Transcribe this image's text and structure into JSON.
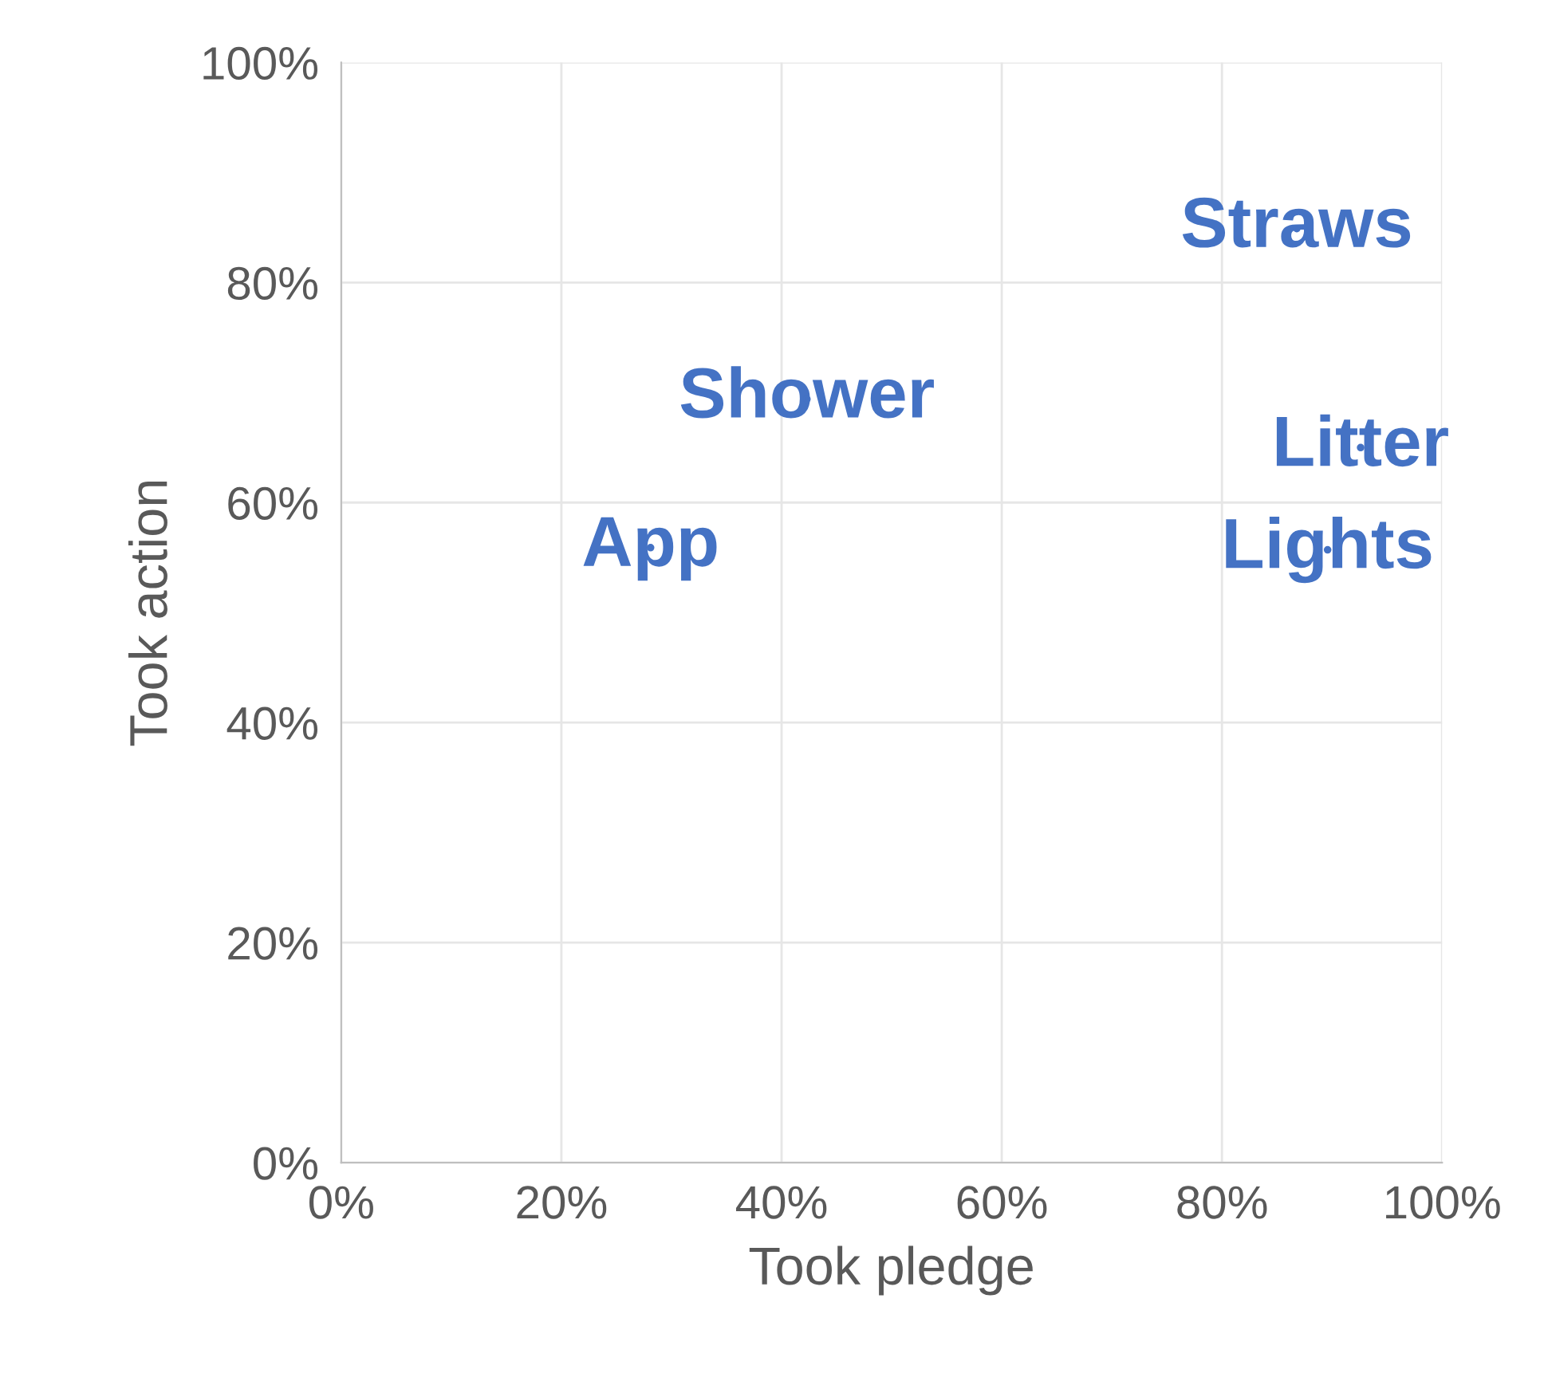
{
  "chart_data": {
    "type": "scatter",
    "xlabel": "Took pledge",
    "ylabel": "Took action",
    "x": [
      86.8,
      42.3,
      28.1,
      92.6,
      89.6
    ],
    "values": [
      84.9,
      69.4,
      55.9,
      65.0,
      55.7
    ],
    "value_labels": [
      "Straws",
      "Shower",
      "App",
      "Litter",
      "Lights"
    ],
    "color": "#4472c4",
    "marker": "none",
    "grid": true,
    "xlim": [
      0,
      100
    ],
    "ylim": [
      0,
      100
    ],
    "xticks": [
      {
        "value": 0,
        "label": "0%"
      },
      {
        "value": 20,
        "label": "20%"
      },
      {
        "value": 40,
        "label": "40%"
      },
      {
        "value": 60,
        "label": "60%"
      },
      {
        "value": 80,
        "label": "80%"
      },
      {
        "value": 100,
        "label": "100%"
      }
    ],
    "yticks": [
      {
        "value": 0,
        "label": "0%"
      },
      {
        "value": 20,
        "label": "20%"
      },
      {
        "value": 40,
        "label": "40%"
      },
      {
        "value": 60,
        "label": "60%"
      },
      {
        "value": 80,
        "label": "80%"
      },
      {
        "value": 100,
        "label": "100%"
      }
    ]
  }
}
